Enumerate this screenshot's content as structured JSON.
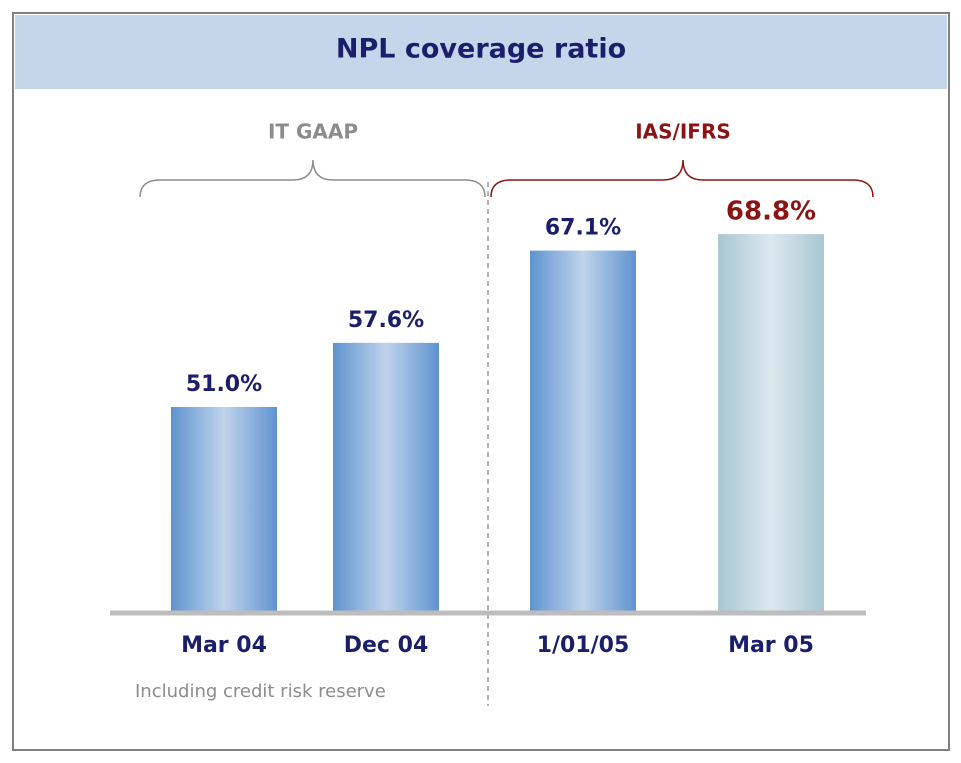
{
  "chart_data": {
    "type": "bar",
    "title": "NPL coverage ratio",
    "categories": [
      "Mar 04",
      "Dec 04",
      "1/01/05",
      "Mar 05"
    ],
    "values": [
      51.0,
      57.6,
      67.1,
      68.8
    ],
    "value_labels": [
      "51.0%",
      "57.6%",
      "67.1%",
      "68.8%"
    ],
    "colors": [
      "#5f93cf",
      "#5f93cf",
      "#5f93cf",
      "#a9c6d3"
    ],
    "label_colors": [
      "#1b1f6b",
      "#1b1f6b",
      "#1b1f6b",
      "#8a1414"
    ],
    "groups": [
      {
        "label": "IT GAAP",
        "color": "#8c8c8c"
      },
      {
        "label": "IAS/IFRS",
        "color": "#8a1414"
      }
    ],
    "note": "Including credit risk reserve",
    "ylim": [
      30,
      72
    ]
  }
}
